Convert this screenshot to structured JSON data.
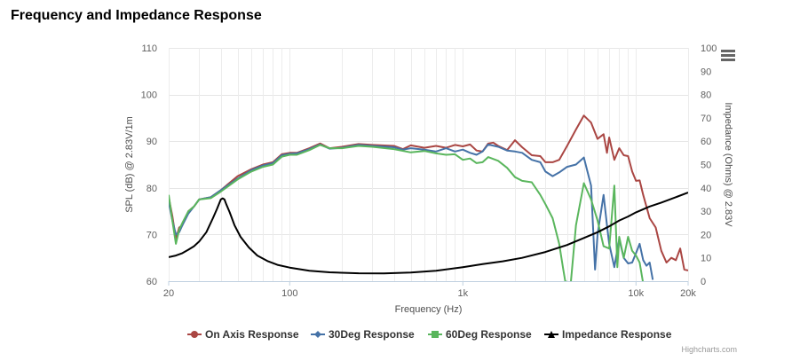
{
  "title": "Frequency and Impedance Response",
  "credits": "Highcharts.com",
  "menu_icon": "hamburger-menu-icon",
  "chart_data": {
    "type": "line",
    "title": "Frequency and Impedance Response",
    "xlabel": "Frequency (Hz)",
    "x_scale": "log",
    "xlim": [
      20,
      20000
    ],
    "x_ticks": [
      20,
      100,
      1000,
      10000,
      20000
    ],
    "x_tick_labels": [
      "20",
      "100",
      "1k",
      "10k",
      "20k"
    ],
    "y_left": {
      "label": "SPL (dB) @ 2.83V/1m",
      "ylim": [
        60,
        110
      ],
      "ticks": [
        60,
        70,
        80,
        90,
        100,
        110
      ]
    },
    "y_right": {
      "label": "Impedance (Ohms) @ 2.83V",
      "ylim": [
        0,
        100
      ],
      "ticks": [
        0,
        10,
        20,
        30,
        40,
        50,
        60,
        70,
        80,
        90,
        100
      ]
    },
    "grid": true,
    "legend_position": "bottom-center",
    "series": [
      {
        "name": "On Axis Response",
        "axis": "left",
        "color": "#aa4643",
        "marker": "circle",
        "points": [
          [
            20,
            78
          ],
          [
            21,
            74
          ],
          [
            22,
            69
          ],
          [
            23,
            71.5
          ],
          [
            24,
            72
          ],
          [
            26,
            75
          ],
          [
            28,
            76
          ],
          [
            30,
            77.5
          ],
          [
            35,
            78
          ],
          [
            40,
            79.5
          ],
          [
            50,
            82.5
          ],
          [
            60,
            84
          ],
          [
            70,
            85
          ],
          [
            80,
            85.5
          ],
          [
            90,
            87.2
          ],
          [
            100,
            87.5
          ],
          [
            110,
            87.5
          ],
          [
            130,
            88.5
          ],
          [
            150,
            89.5
          ],
          [
            170,
            88.5
          ],
          [
            200,
            88.8
          ],
          [
            250,
            89.4
          ],
          [
            300,
            89.2
          ],
          [
            400,
            89
          ],
          [
            450,
            88.3
          ],
          [
            500,
            89.1
          ],
          [
            600,
            88.6
          ],
          [
            700,
            89
          ],
          [
            800,
            88.6
          ],
          [
            900,
            89.2
          ],
          [
            1000,
            88.9
          ],
          [
            1100,
            89.3
          ],
          [
            1200,
            88
          ],
          [
            1300,
            87.8
          ],
          [
            1400,
            89.5
          ],
          [
            1500,
            89.7
          ],
          [
            1600,
            89
          ],
          [
            1800,
            88.1
          ],
          [
            2000,
            90.2
          ],
          [
            2200,
            88.7
          ],
          [
            2500,
            87
          ],
          [
            2800,
            86.8
          ],
          [
            3000,
            85.5
          ],
          [
            3300,
            85.5
          ],
          [
            3600,
            86
          ],
          [
            4000,
            89
          ],
          [
            4500,
            92.5
          ],
          [
            5000,
            95.5
          ],
          [
            5500,
            94
          ],
          [
            6000,
            90.5
          ],
          [
            6500,
            91.5
          ],
          [
            6800,
            87.5
          ],
          [
            7000,
            90.8
          ],
          [
            7500,
            86
          ],
          [
            8000,
            88.5
          ],
          [
            8500,
            87
          ],
          [
            9000,
            86.8
          ],
          [
            9500,
            83.5
          ],
          [
            10000,
            81.5
          ],
          [
            10500,
            81.6
          ],
          [
            11000,
            78.5
          ],
          [
            12000,
            73.5
          ],
          [
            13000,
            71.5
          ],
          [
            14000,
            66.5
          ],
          [
            15000,
            64
          ],
          [
            16000,
            65
          ],
          [
            17000,
            64.5
          ],
          [
            18000,
            67
          ],
          [
            19000,
            62.5
          ],
          [
            20000,
            62.3
          ]
        ]
      },
      {
        "name": "30Deg Response",
        "axis": "left",
        "color": "#4572a7",
        "marker": "diamond",
        "points": [
          [
            20,
            77
          ],
          [
            21,
            73
          ],
          [
            22,
            70
          ],
          [
            23,
            70.5
          ],
          [
            24,
            72
          ],
          [
            26,
            74.5
          ],
          [
            28,
            76
          ],
          [
            30,
            77.5
          ],
          [
            35,
            78
          ],
          [
            40,
            79.5
          ],
          [
            50,
            82
          ],
          [
            60,
            83.8
          ],
          [
            70,
            84.8
          ],
          [
            80,
            85.3
          ],
          [
            90,
            87
          ],
          [
            100,
            87.3
          ],
          [
            110,
            87.4
          ],
          [
            130,
            88.3
          ],
          [
            150,
            89.3
          ],
          [
            170,
            88.4
          ],
          [
            200,
            88.6
          ],
          [
            250,
            89.2
          ],
          [
            300,
            89
          ],
          [
            400,
            88.7
          ],
          [
            450,
            88.2
          ],
          [
            500,
            88.5
          ],
          [
            600,
            88.2
          ],
          [
            700,
            87.8
          ],
          [
            800,
            88.5
          ],
          [
            900,
            87.8
          ],
          [
            1000,
            88.2
          ],
          [
            1100,
            87.5
          ],
          [
            1200,
            87.1
          ],
          [
            1300,
            87.8
          ],
          [
            1400,
            89.3
          ],
          [
            1600,
            88.8
          ],
          [
            1800,
            88
          ],
          [
            2000,
            87.8
          ],
          [
            2200,
            87.5
          ],
          [
            2500,
            86
          ],
          [
            2800,
            85.5
          ],
          [
            3000,
            83.5
          ],
          [
            3300,
            82.5
          ],
          [
            3600,
            83.3
          ],
          [
            4000,
            84.5
          ],
          [
            4500,
            85
          ],
          [
            5000,
            86.5
          ],
          [
            5500,
            80.5
          ],
          [
            5800,
            62.5
          ],
          [
            6000,
            70
          ],
          [
            6500,
            78.5
          ],
          [
            6800,
            72
          ],
          [
            7000,
            68
          ],
          [
            7500,
            63
          ],
          [
            8000,
            69
          ],
          [
            8500,
            65
          ],
          [
            9000,
            63.8
          ],
          [
            9500,
            64
          ],
          [
            10000,
            66
          ],
          [
            10500,
            68
          ],
          [
            11000,
            64.5
          ],
          [
            11500,
            63.3
          ],
          [
            12000,
            64
          ],
          [
            12500,
            60.3
          ]
        ]
      },
      {
        "name": "60Deg Response",
        "axis": "left",
        "color": "#5ab65d",
        "marker": "square",
        "points": [
          [
            20,
            78.5
          ],
          [
            21,
            73
          ],
          [
            22,
            68
          ],
          [
            23,
            71
          ],
          [
            24,
            72.5
          ],
          [
            26,
            75
          ],
          [
            28,
            76
          ],
          [
            30,
            77.5
          ],
          [
            35,
            77.8
          ],
          [
            40,
            79.2
          ],
          [
            50,
            81.8
          ],
          [
            60,
            83.5
          ],
          [
            70,
            84.5
          ],
          [
            80,
            85
          ],
          [
            90,
            86.7
          ],
          [
            100,
            87.1
          ],
          [
            110,
            87.1
          ],
          [
            130,
            88.1
          ],
          [
            150,
            89.2
          ],
          [
            170,
            88.5
          ],
          [
            200,
            88.5
          ],
          [
            250,
            89
          ],
          [
            300,
            88.8
          ],
          [
            400,
            88.3
          ],
          [
            500,
            87.6
          ],
          [
            600,
            87.9
          ],
          [
            700,
            87.4
          ],
          [
            800,
            87.1
          ],
          [
            900,
            87.2
          ],
          [
            1000,
            86
          ],
          [
            1100,
            86.3
          ],
          [
            1200,
            85.3
          ],
          [
            1300,
            85.5
          ],
          [
            1400,
            86.6
          ],
          [
            1600,
            85.8
          ],
          [
            1800,
            84.3
          ],
          [
            2000,
            82.3
          ],
          [
            2200,
            81.5
          ],
          [
            2500,
            81.2
          ],
          [
            2800,
            78.5
          ],
          [
            3000,
            76.5
          ],
          [
            3300,
            73.5
          ],
          [
            3600,
            68
          ],
          [
            3800,
            62.5
          ],
          [
            3900,
            60
          ],
          [
            4200,
            59.5
          ],
          [
            4500,
            72
          ],
          [
            5000,
            81
          ],
          [
            5500,
            77.5
          ],
          [
            6000,
            73
          ],
          [
            6500,
            67.5
          ],
          [
            7000,
            67
          ],
          [
            7500,
            80.5
          ],
          [
            7800,
            63
          ],
          [
            8000,
            69.5
          ],
          [
            8500,
            65
          ],
          [
            9000,
            69.5
          ],
          [
            9500,
            66.5
          ],
          [
            10000,
            65.5
          ],
          [
            10500,
            64
          ],
          [
            11000,
            59.5
          ]
        ]
      },
      {
        "name": "Impedance Response",
        "axis": "right",
        "color": "#000000",
        "marker": "triangle",
        "points": [
          [
            20,
            10.3
          ],
          [
            22,
            11
          ],
          [
            24,
            12
          ],
          [
            26,
            13.5
          ],
          [
            28,
            15
          ],
          [
            30,
            17
          ],
          [
            33,
            21
          ],
          [
            36,
            27
          ],
          [
            38,
            31
          ],
          [
            40,
            35
          ],
          [
            41,
            35.5
          ],
          [
            42,
            35
          ],
          [
            43,
            33
          ],
          [
            45,
            29.5
          ],
          [
            48,
            24
          ],
          [
            52,
            19
          ],
          [
            58,
            14.5
          ],
          [
            65,
            11
          ],
          [
            75,
            8.5
          ],
          [
            85,
            7
          ],
          [
            100,
            5.8
          ],
          [
            130,
            4.5
          ],
          [
            170,
            3.8
          ],
          [
            250,
            3.4
          ],
          [
            350,
            3.3
          ],
          [
            500,
            3.7
          ],
          [
            700,
            4.5
          ],
          [
            1000,
            6
          ],
          [
            1300,
            7.3
          ],
          [
            1700,
            8.5
          ],
          [
            2200,
            10
          ],
          [
            3000,
            12.5
          ],
          [
            4000,
            15.5
          ],
          [
            5000,
            18.5
          ],
          [
            6000,
            21
          ],
          [
            7000,
            23.5
          ],
          [
            8000,
            26
          ],
          [
            9000,
            27.7
          ],
          [
            10000,
            29.5
          ],
          [
            12000,
            32
          ],
          [
            14000,
            33.7
          ],
          [
            17000,
            36
          ],
          [
            20000,
            38
          ]
        ]
      }
    ]
  }
}
